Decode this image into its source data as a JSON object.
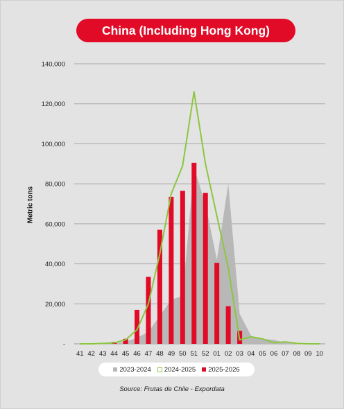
{
  "chart_data": {
    "type": "bar",
    "title": "China (Including Hong Kong)",
    "ylabel": "Metric tons",
    "xlabel": "",
    "ylim": [
      0,
      140000
    ],
    "yticks": [
      "-",
      "20,000",
      "40,000",
      "60,000",
      "80,000",
      "100,000",
      "120,000",
      "140,000"
    ],
    "grid": true,
    "legend_position": "bottom",
    "categories": [
      "41",
      "42",
      "43",
      "44",
      "45",
      "46",
      "47",
      "48",
      "49",
      "50",
      "51",
      "52",
      "01",
      "02",
      "03",
      "04",
      "05",
      "06",
      "07",
      "08",
      "09",
      "10"
    ],
    "series": [
      {
        "name": "2023-2024",
        "kind": "area",
        "color": "#b8b8b8",
        "values": [
          0,
          0,
          0,
          200,
          1000,
          3000,
          6000,
          14000,
          22000,
          24000,
          88000,
          70000,
          42000,
          80000,
          15000,
          4000,
          2500,
          2000,
          500,
          200,
          100,
          0
        ]
      },
      {
        "name": "2024-2025",
        "kind": "line",
        "color": "#8cc63f",
        "values": [
          0,
          0,
          200,
          500,
          2000,
          7000,
          20000,
          45000,
          75000,
          89000,
          126000,
          90000,
          64000,
          38000,
          2000,
          3500,
          2500,
          500,
          1000,
          200,
          0,
          0
        ]
      },
      {
        "name": "2025-2026",
        "kind": "bar",
        "color": "#e10a27",
        "values": [
          0,
          0,
          0,
          1000,
          2500,
          17000,
          33500,
          57000,
          73500,
          76500,
          90500,
          75500,
          40500,
          18800,
          6500,
          null,
          null,
          null,
          null,
          null,
          null,
          null
        ]
      }
    ]
  },
  "source": "Source: Frutas de Chile - Expordata"
}
